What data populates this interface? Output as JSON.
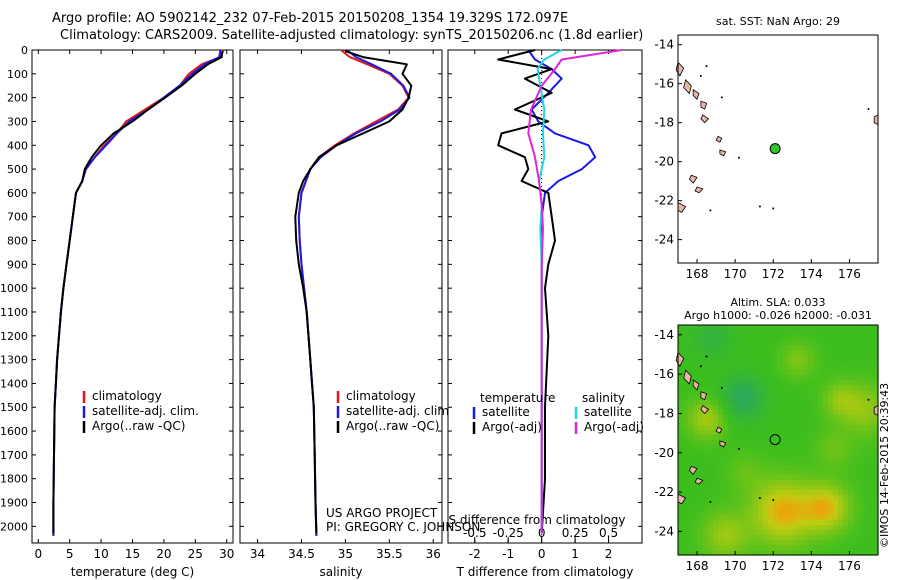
{
  "header": {
    "line1": "Argo profile: AO 5902142_232 07-Feb-2015 20150208_1354 19.329S 172.097E",
    "line2": "Climatology: CARS2009. Satellite-adjusted climatology: synTS_20150206.nc (1.8d earlier)"
  },
  "colors": {
    "climatology": "#e01818",
    "satellite": "#1a1ae6",
    "argo": "#000000",
    "satellite_salinity": "#22d6e6",
    "argo_salinity": "#e026d6"
  },
  "credits": {
    "project": "US ARGO PROJECT",
    "pi": "PI: GREGORY C. JOHNSON",
    "imos": "©IMOS 14-Feb-2015 20:39:43"
  },
  "chart_data": [
    {
      "type": "line",
      "panel": "temperature",
      "xlabel": "temperature (deg C)",
      "ylabel": "",
      "xlim": [
        -1,
        31
      ],
      "ylim": [
        2070,
        0
      ],
      "xticks": [
        0,
        5,
        10,
        15,
        20,
        25,
        30
      ],
      "yticks": [
        0,
        100,
        200,
        300,
        400,
        500,
        600,
        700,
        800,
        900,
        1000,
        1100,
        1200,
        1300,
        1400,
        1500,
        1600,
        1700,
        1800,
        1900,
        2000
      ],
      "legend": {
        "position": "bottom-center",
        "entries": [
          "climatology",
          "satellite-adj. clim.",
          "Argo(..raw -QC)"
        ]
      },
      "series": [
        {
          "name": "climatology",
          "color_key": "climatology",
          "x": [
            29.5,
            29.0,
            26.0,
            24.0,
            22.5,
            20.0,
            17.0,
            14.0,
            12.5,
            10.5,
            9.0,
            7.5,
            7.0,
            6.0,
            5.5,
            5.0,
            4.5,
            4.0,
            3.6,
            3.3,
            3.0,
            2.8,
            2.6,
            2.5,
            2.4,
            2.4
          ],
          "y": [
            0,
            30,
            60,
            100,
            150,
            200,
            250,
            300,
            350,
            400,
            450,
            500,
            550,
            600,
            700,
            800,
            900,
            1000,
            1100,
            1200,
            1300,
            1400,
            1500,
            1700,
            1900,
            2040
          ]
        },
        {
          "name": "satellite-adj. clim.",
          "color_key": "satellite",
          "x": [
            29.0,
            28.8,
            26.5,
            24.5,
            22.5,
            20.0,
            17.5,
            14.5,
            12.5,
            10.8,
            9.0,
            7.6,
            7.0,
            6.0,
            5.5,
            5.0,
            4.5,
            4.0,
            3.6,
            3.3,
            3.0,
            2.8,
            2.6,
            2.5,
            2.4,
            2.4
          ],
          "y": [
            0,
            30,
            60,
            100,
            150,
            200,
            250,
            300,
            350,
            400,
            450,
            500,
            550,
            600,
            700,
            800,
            900,
            1000,
            1100,
            1200,
            1300,
            1400,
            1500,
            1700,
            1900,
            2040
          ]
        },
        {
          "name": "Argo(..raw -QC)",
          "color_key": "argo",
          "x": [
            29.3,
            29.2,
            27.0,
            25.0,
            22.8,
            20.2,
            17.5,
            15.0,
            12.0,
            10.0,
            8.5,
            7.4,
            7.0,
            6.0,
            5.5,
            5.0,
            4.5,
            4.0,
            3.6,
            3.3,
            3.0,
            2.8,
            2.6,
            2.5,
            2.4,
            2.4
          ],
          "y": [
            5,
            30,
            60,
            100,
            150,
            200,
            250,
            300,
            350,
            400,
            450,
            500,
            550,
            600,
            700,
            800,
            900,
            1000,
            1100,
            1200,
            1300,
            1400,
            1500,
            1700,
            1900,
            2030
          ]
        }
      ]
    },
    {
      "type": "line",
      "panel": "salinity",
      "xlabel": "salinity",
      "ylabel": "",
      "xlim": [
        33.8,
        36.1
      ],
      "ylim": [
        2070,
        0
      ],
      "xticks": [
        34,
        34.5,
        35,
        35.5,
        36
      ],
      "legend": {
        "position": "bottom-center",
        "entries": [
          "climatology",
          "satellite-adj. clim.",
          "Argo(..raw -QC)"
        ]
      },
      "series": [
        {
          "name": "climatology",
          "color_key": "climatology",
          "x": [
            34.95,
            35.05,
            35.25,
            35.5,
            35.65,
            35.72,
            35.6,
            35.35,
            35.1,
            34.88,
            34.7,
            34.6,
            34.55,
            34.5,
            34.47,
            34.48,
            34.5,
            34.53,
            34.56,
            34.58,
            34.6,
            34.62,
            34.64,
            34.65,
            34.66,
            34.67
          ],
          "y": [
            0,
            30,
            60,
            100,
            150,
            200,
            250,
            300,
            350,
            400,
            450,
            500,
            550,
            600,
            700,
            800,
            900,
            1000,
            1100,
            1200,
            1300,
            1400,
            1500,
            1700,
            1900,
            2040
          ]
        },
        {
          "name": "satellite-adj. clim.",
          "color_key": "satellite",
          "x": [
            35.02,
            35.12,
            35.3,
            35.52,
            35.66,
            35.73,
            35.62,
            35.4,
            35.12,
            34.9,
            34.72,
            34.6,
            34.55,
            34.5,
            34.47,
            34.48,
            34.5,
            34.53,
            34.56,
            34.58,
            34.6,
            34.62,
            34.64,
            34.65,
            34.66,
            34.67
          ],
          "y": [
            0,
            30,
            60,
            100,
            150,
            200,
            250,
            300,
            350,
            400,
            450,
            500,
            550,
            600,
            700,
            800,
            900,
            1000,
            1100,
            1200,
            1300,
            1400,
            1500,
            1700,
            1900,
            2040
          ]
        },
        {
          "name": "Argo(..raw -QC)",
          "color_key": "argo",
          "x": [
            35.0,
            35.2,
            35.7,
            35.65,
            35.75,
            35.72,
            35.65,
            35.5,
            35.2,
            34.9,
            34.7,
            34.6,
            34.52,
            34.47,
            34.43,
            34.44,
            34.47,
            34.52,
            34.56,
            34.58,
            34.6,
            34.62,
            34.64,
            34.65,
            34.66,
            34.67
          ],
          "y": [
            5,
            30,
            60,
            100,
            150,
            200,
            250,
            300,
            350,
            400,
            450,
            500,
            550,
            600,
            700,
            800,
            900,
            1000,
            1100,
            1200,
            1300,
            1400,
            1500,
            1700,
            1900,
            2030
          ]
        }
      ]
    },
    {
      "type": "line",
      "panel": "difference",
      "xlabel": "T difference from climatology",
      "x2label": "S difference from climatology",
      "ylabel": "",
      "xlim": [
        -2.8,
        3.0
      ],
      "x2lim": [
        -0.7,
        0.75
      ],
      "ylim": [
        2070,
        0
      ],
      "xticks": [
        -2,
        -1,
        0,
        1,
        2
      ],
      "x2ticks": [
        -0.5,
        -0.25,
        0,
        0.25,
        0.5
      ],
      "x2ticklabels": [
        "-0.5",
        "-0.25",
        "0",
        "0.25",
        "0.5"
      ],
      "legend": {
        "position": "bottom",
        "headers": [
          "temperature",
          "salinity"
        ],
        "entries": [
          "satellite",
          "Argo(-adj)",
          "satellite",
          "Argo(-adj)"
        ]
      },
      "series": [
        {
          "name": "satellite",
          "group": "temperature",
          "color_key": "satellite",
          "x": [
            -0.4,
            -0.2,
            0.3,
            0.6,
            0.2,
            -0.3,
            -0.1,
            0.4,
            1.4,
            1.6,
            1.2,
            0.5,
            0.1,
            0.0,
            0.0,
            0.0,
            0.0,
            0.0,
            0.0,
            0.0,
            0.0
          ],
          "y": [
            0,
            40,
            80,
            120,
            180,
            250,
            300,
            350,
            400,
            450,
            500,
            550,
            600,
            700,
            800,
            900,
            1000,
            1200,
            1500,
            1800,
            2030
          ]
        },
        {
          "name": "Argo(-adj)",
          "group": "temperature",
          "color_key": "argo",
          "x": [
            -0.2,
            -1.3,
            0.3,
            -0.5,
            0.3,
            -0.8,
            0.2,
            -1.2,
            -1.3,
            -0.5,
            -0.4,
            -0.6,
            0.2,
            0.3,
            0.4,
            0.2,
            0.1,
            0.2,
            0.1,
            0.1,
            0.0
          ],
          "y": [
            0,
            40,
            80,
            120,
            180,
            250,
            300,
            350,
            400,
            450,
            500,
            550,
            600,
            700,
            800,
            900,
            1000,
            1200,
            1500,
            1800,
            2030
          ]
        },
        {
          "name": "satellite",
          "group": "salinity",
          "color_key": "satellite_salinity",
          "x": [
            0.15,
            0.02,
            -0.03,
            -0.01,
            0.02,
            0.01,
            0.02,
            -0.02,
            0.0,
            -0.01,
            0.0,
            0.0,
            0.0,
            0.0,
            0.0,
            0.0,
            0.0
          ],
          "y": [
            0,
            40,
            80,
            150,
            250,
            350,
            450,
            550,
            650,
            750,
            900,
            1100,
            1300,
            1500,
            1700,
            1900,
            2030
          ]
        },
        {
          "name": "Argo(-adj)",
          "group": "salinity",
          "color_key": "argo_salinity",
          "x": [
            0.6,
            0.15,
            0.1,
            0.0,
            -0.08,
            -0.1,
            -0.05,
            -0.02,
            0.0,
            0.01,
            0.0,
            0.0,
            0.0,
            0.0,
            0.0,
            0.0,
            0.0
          ],
          "y": [
            0,
            40,
            80,
            150,
            250,
            350,
            450,
            550,
            650,
            750,
            900,
            1100,
            1300,
            1500,
            1700,
            1900,
            2030
          ]
        }
      ]
    },
    {
      "type": "scatter",
      "panel": "map_sst",
      "title": "sat. SST: NaN  Argo: 29",
      "xlim": [
        167,
        177.5
      ],
      "ylim": [
        -25.2,
        -13.5
      ],
      "xticks": [
        168,
        170,
        172,
        174,
        176
      ],
      "yticks": [
        -24,
        -22,
        -20,
        -18,
        -16,
        -14
      ],
      "points": [
        {
          "x": 172.1,
          "y": -19.33
        }
      ]
    },
    {
      "type": "heatmap",
      "panel": "map_sla",
      "title": "Altim. SLA: 0.033",
      "subtitle": "Argo h1000: -0.026  h2000: -0.031",
      "xlim": [
        167,
        177.5
      ],
      "ylim": [
        -25.2,
        -13.5
      ],
      "xticks": [
        168,
        170,
        172,
        174,
        176
      ],
      "yticks": [
        -24,
        -22,
        -20,
        -18,
        -16,
        -14
      ],
      "points": [
        {
          "x": 172.1,
          "y": -19.33
        }
      ]
    }
  ]
}
